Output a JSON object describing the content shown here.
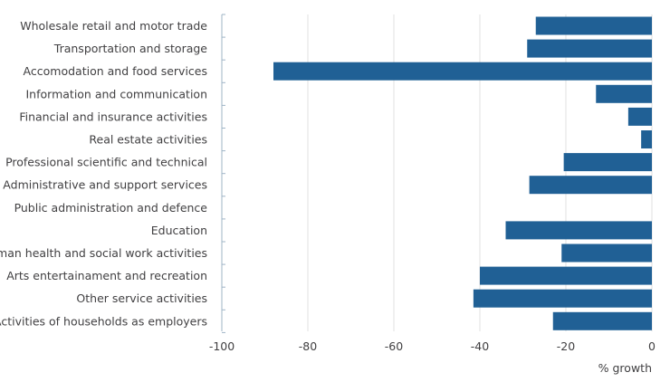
{
  "chart_data": {
    "type": "bar",
    "orientation": "horizontal",
    "categories": [
      "Wholesale retail and motor trade",
      "Transportation and storage",
      "Accomodation and food services",
      "Information and communication",
      "Financial and insurance activities",
      "Real estate activities",
      "Professional scientific and technical",
      "Administrative and support services",
      "Public administration and defence",
      "Education",
      "Human health and social work activities",
      "Arts entertainament and recreation",
      "Other service activities",
      "Activities of households as employers"
    ],
    "values": [
      -27,
      -29,
      -88,
      -13,
      -5.5,
      -2.5,
      -20.5,
      -28.5,
      0,
      -34,
      -21,
      -40,
      -41.5,
      -23
    ],
    "xlim": [
      -100,
      0
    ],
    "xticks": [
      -100,
      -80,
      -60,
      -40,
      -20,
      0
    ],
    "xlabel": "% growth",
    "ylabel": "",
    "title": "",
    "grid": true,
    "bar_color": "#206095",
    "grid_color": "#e1e1e1",
    "axis_color": "#9fb4c6",
    "text_color": "#414042"
  }
}
